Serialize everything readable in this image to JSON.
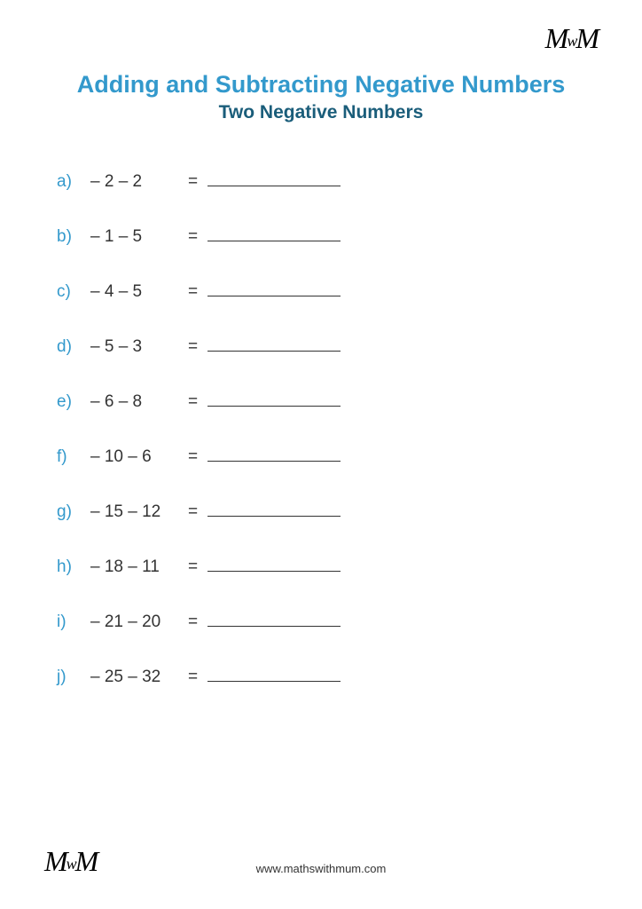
{
  "logo_text": "MwM",
  "title": "Adding and Subtracting Negative Numbers",
  "subtitle": "Two Negative Numbers",
  "problems": [
    {
      "label": "a)",
      "expr": "– 2 – 2"
    },
    {
      "label": "b)",
      "expr": "– 1 – 5"
    },
    {
      "label": "c)",
      "expr": "– 4 – 5"
    },
    {
      "label": "d)",
      "expr": "– 5 – 3"
    },
    {
      "label": "e)",
      "expr": "– 6 – 8"
    },
    {
      "label": "f)",
      "expr": "– 10 – 6"
    },
    {
      "label": "g)",
      "expr": "– 15 – 12"
    },
    {
      "label": "h)",
      "expr": "– 18 – 11"
    },
    {
      "label": "i)",
      "expr": "– 21 – 20"
    },
    {
      "label": "j)",
      "expr": "– 25 – 32"
    }
  ],
  "equals_symbol": "=",
  "footer_url": "www.mathswithmum.com",
  "colors": {
    "title": "#3399cc",
    "subtitle": "#1a5d7a",
    "label": "#3399cc",
    "text": "#333333",
    "background": "#ffffff"
  },
  "font_sizes": {
    "title": 27,
    "subtitle": 21,
    "problem": 19,
    "footer": 13
  }
}
